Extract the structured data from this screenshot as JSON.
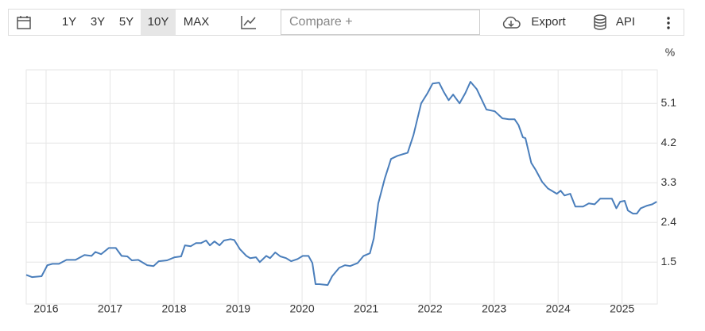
{
  "toolbar": {
    "ranges": [
      "1Y",
      "3Y",
      "5Y",
      "10Y",
      "MAX"
    ],
    "compare": "Compare +",
    "export": "Export",
    "api": "API"
  },
  "chart_data": {
    "type": "line",
    "ylabel": "%",
    "color": "#4a7ebb",
    "grid": true,
    "xlim": [
      2015.69,
      2025.55
    ],
    "xticks": [
      2016,
      2017,
      2018,
      2019,
      2020,
      2021,
      2022,
      2023,
      2024,
      2025
    ],
    "ylim": [
      0.55,
      5.86
    ],
    "yticks": [
      1.5,
      2.4,
      3.3,
      4.2,
      5.1
    ],
    "x": [
      2015.69,
      2015.78,
      2015.93,
      2016.02,
      2016.1,
      2016.2,
      2016.32,
      2016.46,
      2016.6,
      2016.71,
      2016.77,
      2016.86,
      2016.98,
      2017.09,
      2017.18,
      2017.27,
      2017.34,
      2017.44,
      2017.58,
      2017.68,
      2017.76,
      2017.89,
      2018.01,
      2018.11,
      2018.17,
      2018.26,
      2018.34,
      2018.42,
      2018.5,
      2018.56,
      2018.63,
      2018.71,
      2018.78,
      2018.88,
      2018.94,
      2019.03,
      2019.13,
      2019.19,
      2019.28,
      2019.34,
      2019.44,
      2019.5,
      2019.58,
      2019.66,
      2019.75,
      2019.83,
      2019.93,
      2020.01,
      2020.1,
      2020.16,
      2020.21,
      2020.27,
      2020.4,
      2020.47,
      2020.58,
      2020.67,
      2020.75,
      2020.87,
      2020.96,
      2021.06,
      2021.12,
      2021.19,
      2021.29,
      2021.39,
      2021.49,
      2021.65,
      2021.74,
      2021.86,
      2021.96,
      2022.04,
      2022.14,
      2022.21,
      2022.29,
      2022.36,
      2022.46,
      2022.55,
      2022.63,
      2022.73,
      2022.88,
      2023.01,
      2023.13,
      2023.23,
      2023.32,
      2023.38,
      2023.45,
      2023.49,
      2023.58,
      2023.65,
      2023.75,
      2023.84,
      2023.9,
      2023.98,
      2024.04,
      2024.1,
      2024.19,
      2024.27,
      2024.39,
      2024.48,
      2024.57,
      2024.66,
      2024.73,
      2024.84,
      2024.91,
      2024.97,
      2025.04,
      2025.09,
      2025.17,
      2025.23,
      2025.29,
      2025.39,
      2025.47,
      2025.54
    ],
    "values": [
      1.21,
      1.16,
      1.18,
      1.43,
      1.46,
      1.46,
      1.55,
      1.55,
      1.66,
      1.64,
      1.73,
      1.68,
      1.82,
      1.82,
      1.64,
      1.63,
      1.54,
      1.55,
      1.43,
      1.41,
      1.52,
      1.54,
      1.61,
      1.63,
      1.88,
      1.86,
      1.93,
      1.93,
      1.99,
      1.88,
      1.97,
      1.88,
      1.99,
      2.02,
      2.0,
      1.79,
      1.64,
      1.59,
      1.61,
      1.5,
      1.64,
      1.59,
      1.72,
      1.63,
      1.59,
      1.52,
      1.57,
      1.64,
      1.64,
      1.48,
      1.0,
      1.0,
      0.98,
      1.18,
      1.37,
      1.43,
      1.41,
      1.48,
      1.64,
      1.7,
      2.04,
      2.83,
      3.39,
      3.84,
      3.91,
      3.98,
      4.38,
      5.1,
      5.33,
      5.55,
      5.57,
      5.37,
      5.17,
      5.3,
      5.1,
      5.33,
      5.59,
      5.42,
      4.96,
      4.92,
      4.76,
      4.74,
      4.74,
      4.61,
      4.33,
      4.31,
      3.75,
      3.59,
      3.32,
      3.17,
      3.12,
      3.05,
      3.12,
      3.01,
      3.05,
      2.76,
      2.76,
      2.83,
      2.81,
      2.94,
      2.94,
      2.94,
      2.72,
      2.87,
      2.89,
      2.67,
      2.6,
      2.6,
      2.72,
      2.78,
      2.81,
      2.87
    ]
  }
}
